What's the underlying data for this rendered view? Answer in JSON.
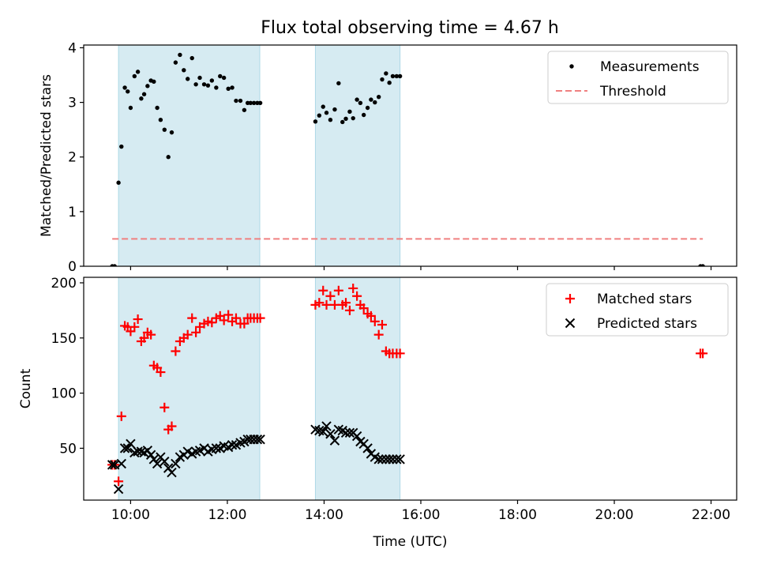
{
  "title": "Flux total observing time = 4.67 h",
  "colors": {
    "shade": "#add8e6",
    "measurement": "#000000",
    "threshold": "#f08080",
    "matched": "#ff0000",
    "predicted": "#000000"
  },
  "x_ticks": [
    {
      "value": 10,
      "label": "10:00"
    },
    {
      "value": 12,
      "label": "12:00"
    },
    {
      "value": 14,
      "label": "14:00"
    },
    {
      "value": 16,
      "label": "16:00"
    },
    {
      "value": 18,
      "label": "18:00"
    },
    {
      "value": 20,
      "label": "20:00"
    },
    {
      "value": 22,
      "label": "22:00"
    }
  ],
  "chart_data": [
    {
      "type": "scatter",
      "xlabel": "",
      "ylabel": "Matched/Predicted stars",
      "xlim": [
        9.03,
        22.53
      ],
      "ylim": [
        0,
        4.05
      ],
      "yticks": [
        0,
        1,
        2,
        3,
        4
      ],
      "legend_position": "top-right",
      "shaded_intervals": [
        [
          9.75,
          12.67
        ],
        [
          13.82,
          15.57
        ]
      ],
      "series": [
        {
          "name": "Measurements",
          "marker": "dot",
          "x": [
            9.62,
            9.67,
            9.75,
            9.81,
            9.88,
            9.94,
            10.0,
            10.08,
            10.15,
            10.22,
            10.28,
            10.35,
            10.42,
            10.48,
            10.55,
            10.62,
            10.7,
            10.78,
            10.85,
            10.93,
            11.02,
            11.1,
            11.18,
            11.27,
            11.35,
            11.43,
            11.52,
            11.6,
            11.68,
            11.77,
            11.85,
            11.93,
            12.02,
            12.1,
            12.18,
            12.27,
            12.35,
            12.42,
            12.48,
            12.55,
            12.62,
            12.68,
            13.82,
            13.9,
            13.98,
            14.05,
            14.13,
            14.22,
            14.3,
            14.38,
            14.45,
            14.53,
            14.6,
            14.68,
            14.75,
            14.82,
            14.9,
            14.97,
            15.05,
            15.13,
            15.2,
            15.28,
            15.35,
            15.42,
            15.5,
            15.57,
            21.78,
            21.83
          ],
          "y": [
            0,
            0,
            1.53,
            2.19,
            3.27,
            3.2,
            2.9,
            3.48,
            3.56,
            3.07,
            3.15,
            3.3,
            3.4,
            3.38,
            2.9,
            2.68,
            2.5,
            2.0,
            2.45,
            3.73,
            3.87,
            3.59,
            3.43,
            3.81,
            3.33,
            3.45,
            3.33,
            3.31,
            3.4,
            3.27,
            3.48,
            3.45,
            3.25,
            3.27,
            3.03,
            3.03,
            2.86,
            2.99,
            2.99,
            2.99,
            2.99,
            2.99,
            2.65,
            2.76,
            2.92,
            2.81,
            2.68,
            2.87,
            3.35,
            2.64,
            2.7,
            2.83,
            2.71,
            3.05,
            2.99,
            2.77,
            2.9,
            3.05,
            3.0,
            3.1,
            3.42,
            3.53,
            3.36,
            3.48,
            3.48,
            3.48,
            0,
            0
          ]
        },
        {
          "name": "Threshold",
          "marker": "dashed-line",
          "x": [
            9.62,
            21.83
          ],
          "y": [
            0.5,
            0.5
          ]
        }
      ]
    },
    {
      "type": "scatter",
      "xlabel": "Time (UTC)",
      "ylabel": "Count",
      "xlim": [
        9.03,
        22.53
      ],
      "ylim": [
        3,
        205
      ],
      "yticks": [
        50,
        100,
        150,
        200
      ],
      "legend_position": "top-right",
      "shaded_intervals": [
        [
          9.75,
          12.67
        ],
        [
          13.82,
          15.57
        ]
      ],
      "series": [
        {
          "name": "Matched stars",
          "marker": "plus",
          "x": [
            9.62,
            9.67,
            9.75,
            9.81,
            9.88,
            9.94,
            10.0,
            10.08,
            10.15,
            10.22,
            10.28,
            10.35,
            10.42,
            10.48,
            10.55,
            10.62,
            10.7,
            10.78,
            10.85,
            10.93,
            11.02,
            11.1,
            11.18,
            11.27,
            11.35,
            11.43,
            11.52,
            11.6,
            11.68,
            11.77,
            11.85,
            11.93,
            12.02,
            12.1,
            12.18,
            12.27,
            12.35,
            12.42,
            12.48,
            12.55,
            12.62,
            12.68,
            13.82,
            13.9,
            13.98,
            14.05,
            14.13,
            14.22,
            14.3,
            14.38,
            14.45,
            14.53,
            14.6,
            14.68,
            14.75,
            14.82,
            14.9,
            14.97,
            15.05,
            15.13,
            15.2,
            15.28,
            15.35,
            15.42,
            15.5,
            15.57,
            21.78,
            21.83
          ],
          "y": [
            35,
            35,
            20,
            79,
            161,
            160,
            156,
            160,
            167,
            147,
            150,
            155,
            153,
            125,
            123,
            119,
            87,
            67,
            70,
            138,
            147,
            150,
            153,
            168,
            155,
            160,
            163,
            165,
            164,
            168,
            170,
            166,
            171,
            165,
            168,
            163,
            163,
            168,
            168,
            168,
            168,
            168,
            180,
            182,
            193,
            180,
            188,
            180,
            193,
            180,
            182,
            175,
            195,
            188,
            180,
            177,
            172,
            170,
            165,
            153,
            162,
            138,
            136,
            136,
            136,
            136,
            136,
            136
          ]
        },
        {
          "name": "Predicted stars",
          "marker": "x",
          "x": [
            9.62,
            9.67,
            9.75,
            9.81,
            9.88,
            9.94,
            10.0,
            10.08,
            10.15,
            10.22,
            10.28,
            10.35,
            10.42,
            10.48,
            10.55,
            10.62,
            10.7,
            10.78,
            10.85,
            10.93,
            11.02,
            11.1,
            11.18,
            11.27,
            11.35,
            11.43,
            11.52,
            11.6,
            11.68,
            11.77,
            11.85,
            11.93,
            12.02,
            12.1,
            12.18,
            12.27,
            12.35,
            12.42,
            12.48,
            12.55,
            12.62,
            12.68,
            13.82,
            13.9,
            13.98,
            14.05,
            14.13,
            14.22,
            14.3,
            14.38,
            14.45,
            14.53,
            14.6,
            14.68,
            14.75,
            14.82,
            14.9,
            14.97,
            15.05,
            15.13,
            15.2,
            15.28,
            15.35,
            15.42,
            15.5,
            15.57
          ],
          "y": [
            35,
            35,
            13,
            36,
            50,
            50,
            54,
            46,
            47,
            47,
            46,
            48,
            44,
            40,
            36,
            42,
            38,
            32,
            28,
            36,
            42,
            44,
            47,
            45,
            47,
            48,
            50,
            47,
            49,
            50,
            50,
            52,
            51,
            53,
            53,
            55,
            56,
            58,
            58,
            58,
            58,
            58,
            67,
            66,
            65,
            70,
            63,
            57,
            67,
            66,
            64,
            64,
            64,
            61,
            56,
            54,
            50,
            45,
            42,
            40,
            40,
            40,
            40,
            40,
            40,
            40
          ]
        }
      ]
    }
  ]
}
